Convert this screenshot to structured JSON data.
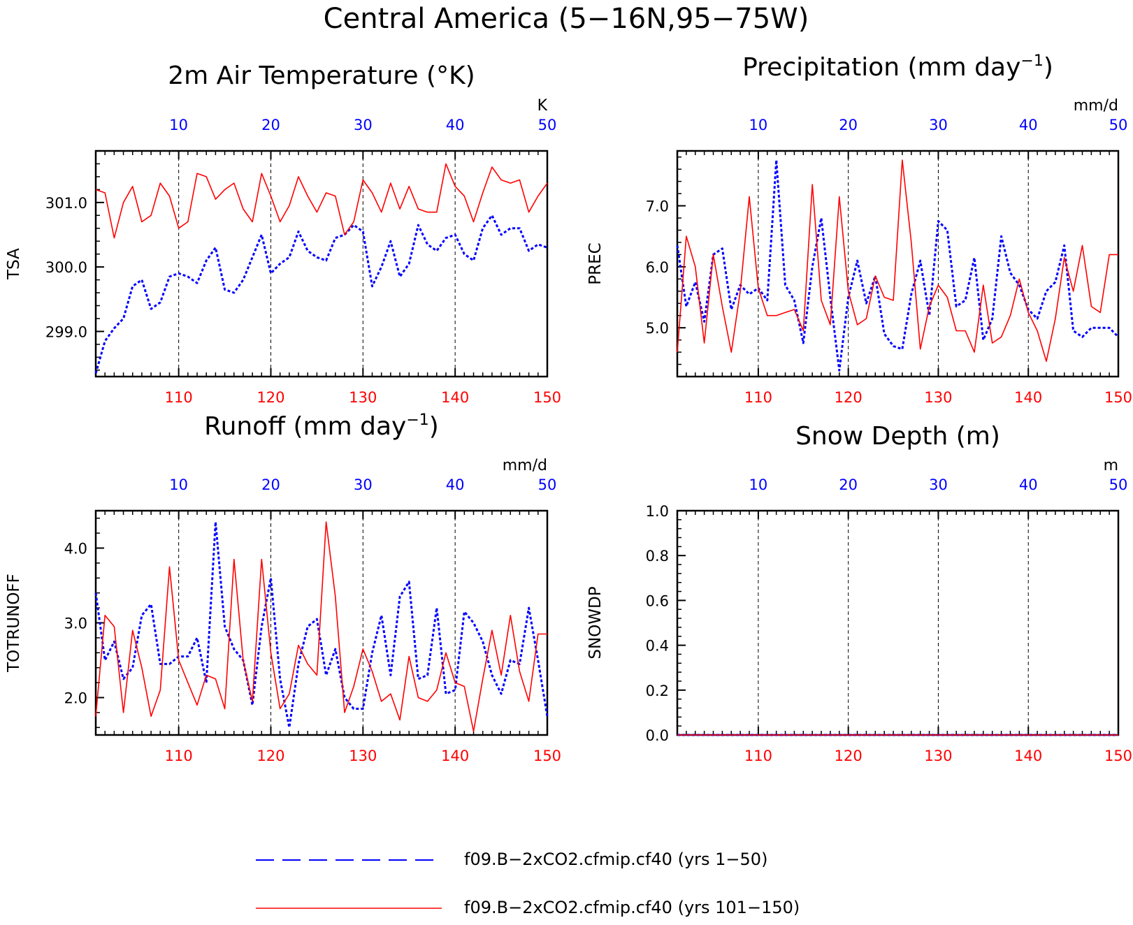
{
  "figure_title": "Central America (5−16N,95−75W)",
  "colors": {
    "blue": "#0000ff",
    "red": "#ff0000",
    "axis": "#000000",
    "grid": "#000000"
  },
  "legend": {
    "entries": [
      {
        "label": "f09.B−2xCO2.cfmip.cf40 (yrs 1−50)",
        "color": "#0000ff",
        "style": "dashed"
      },
      {
        "label": "f09.B−2xCO2.cfmip.cf40 (yrs 101−150)",
        "color": "#ff0000",
        "style": "solid"
      }
    ]
  },
  "chart_data": [
    {
      "type": "line",
      "title_main": "2m Air Temperature (°K)",
      "title_sup": "",
      "title_tail": "",
      "ylabel": "TSA",
      "unit_label": "K",
      "ylim": [
        298.3,
        301.8
      ],
      "yticks": [
        299.0,
        300.0,
        301.0
      ],
      "ytick_labels": [
        "299.0",
        "300.0",
        "301.0"
      ],
      "yminor_step": 0.2,
      "bottom_axis": {
        "lim": [
          101,
          150
        ],
        "ticks": [
          110,
          120,
          130,
          140,
          150
        ],
        "labels": [
          "110",
          "120",
          "130",
          "140",
          "150"
        ]
      },
      "top_axis": {
        "lim": [
          1,
          50
        ],
        "ticks": [
          10,
          20,
          30,
          40,
          50
        ],
        "labels": [
          "10",
          "20",
          "30",
          "40",
          "50"
        ]
      },
      "grid_vertical": [
        110,
        120,
        130,
        140
      ],
      "series": [
        {
          "name": "f09.B−2xCO2.cfmip.cf40 (yrs 1−50)",
          "color": "#0000ff",
          "style": "dashed",
          "values": [
            298.35,
            298.85,
            299.05,
            299.2,
            299.7,
            299.8,
            299.35,
            299.45,
            299.85,
            299.9,
            299.85,
            299.75,
            300.1,
            300.3,
            299.65,
            299.6,
            299.8,
            300.15,
            300.5,
            299.9,
            300.05,
            300.15,
            300.55,
            300.25,
            300.15,
            300.1,
            300.45,
            300.5,
            300.65,
            300.55,
            299.7,
            300.0,
            300.4,
            299.85,
            300.05,
            300.65,
            300.35,
            300.25,
            300.45,
            300.5,
            300.2,
            300.1,
            300.6,
            300.8,
            300.5,
            300.6,
            300.6,
            300.25,
            300.35,
            300.3
          ]
        },
        {
          "name": "f09.B−2xCO2.cfmip.cf40 (yrs 101−150)",
          "color": "#ff0000",
          "style": "solid",
          "values": [
            301.2,
            301.15,
            300.45,
            301.0,
            301.25,
            300.7,
            300.8,
            301.3,
            301.1,
            300.6,
            300.7,
            301.45,
            301.4,
            301.05,
            301.2,
            301.3,
            300.9,
            300.7,
            301.45,
            301.1,
            300.7,
            300.95,
            301.4,
            301.1,
            300.85,
            301.15,
            301.1,
            300.5,
            300.7,
            301.35,
            301.15,
            300.85,
            301.3,
            300.9,
            301.25,
            300.9,
            300.85,
            300.85,
            301.6,
            301.25,
            301.1,
            300.7,
            301.15,
            301.55,
            301.35,
            301.3,
            301.35,
            300.85,
            301.1,
            301.3
          ]
        }
      ]
    },
    {
      "type": "line",
      "title_main": "Precipitation (mm day",
      "title_sup": "−1",
      "title_tail": ")",
      "ylabel": "PREC",
      "unit_label": "mm/d",
      "ylim": [
        4.2,
        7.9
      ],
      "yticks": [
        5.0,
        6.0,
        7.0
      ],
      "ytick_labels": [
        "5.0",
        "6.0",
        "7.0"
      ],
      "yminor_step": 0.2,
      "bottom_axis": {
        "lim": [
          101,
          150
        ],
        "ticks": [
          110,
          120,
          130,
          140,
          150
        ],
        "labels": [
          "110",
          "120",
          "130",
          "140",
          "150"
        ]
      },
      "top_axis": {
        "lim": [
          1,
          50
        ],
        "ticks": [
          10,
          20,
          30,
          40,
          50
        ],
        "labels": [
          "10",
          "20",
          "30",
          "40",
          "50"
        ]
      },
      "grid_vertical": [
        110,
        120,
        130,
        140
      ],
      "series": [
        {
          "name": "f09.B−2xCO2.cfmip.cf40 (yrs 1−50)",
          "color": "#0000ff",
          "style": "dashed",
          "values": [
            6.35,
            5.35,
            5.75,
            5.1,
            6.2,
            6.3,
            5.3,
            5.7,
            5.55,
            5.65,
            5.45,
            7.75,
            5.7,
            5.45,
            4.75,
            6.0,
            6.8,
            5.5,
            4.3,
            5.5,
            6.1,
            5.4,
            5.85,
            4.9,
            4.7,
            4.65,
            5.55,
            6.1,
            5.2,
            6.75,
            6.6,
            5.35,
            5.45,
            6.15,
            4.8,
            5.15,
            6.5,
            5.9,
            5.7,
            5.3,
            5.15,
            5.6,
            5.75,
            6.35,
            4.95,
            4.85,
            5.0,
            5.0,
            5.0,
            4.85
          ]
        },
        {
          "name": "f09.B−2xCO2.cfmip.cf40 (yrs 101−150)",
          "color": "#ff0000",
          "style": "solid",
          "values": [
            4.6,
            6.5,
            6.0,
            4.75,
            6.2,
            5.35,
            4.6,
            5.6,
            7.15,
            5.65,
            5.2,
            5.2,
            5.25,
            5.3,
            4.95,
            7.35,
            5.45,
            5.05,
            7.15,
            5.6,
            5.05,
            5.15,
            5.85,
            5.5,
            5.45,
            7.75,
            6.4,
            4.65,
            5.35,
            5.7,
            5.5,
            4.95,
            4.95,
            4.6,
            5.7,
            4.75,
            4.85,
            5.2,
            5.8,
            5.25,
            4.95,
            4.45,
            5.15,
            6.15,
            5.6,
            6.35,
            5.35,
            5.25,
            6.2,
            6.2
          ]
        }
      ]
    },
    {
      "type": "line",
      "title_main": "Runoff (mm day",
      "title_sup": "−1",
      "title_tail": ")",
      "ylabel": "TOTRUNOFF",
      "unit_label": "mm/d",
      "ylim": [
        1.5,
        4.5
      ],
      "yticks": [
        2.0,
        3.0,
        4.0
      ],
      "ytick_labels": [
        "2.0",
        "3.0",
        "4.0"
      ],
      "yminor_step": 0.2,
      "bottom_axis": {
        "lim": [
          101,
          150
        ],
        "ticks": [
          110,
          120,
          130,
          140,
          150
        ],
        "labels": [
          "110",
          "120",
          "130",
          "140",
          "150"
        ]
      },
      "top_axis": {
        "lim": [
          1,
          50
        ],
        "ticks": [
          10,
          20,
          30,
          40,
          50
        ],
        "labels": [
          "10",
          "20",
          "30",
          "40",
          "50"
        ]
      },
      "grid_vertical": [
        110,
        120,
        130,
        140
      ],
      "series": [
        {
          "name": "f09.B−2xCO2.cfmip.cf40 (yrs 1−50)",
          "color": "#0000ff",
          "style": "dashed",
          "values": [
            3.4,
            2.5,
            2.75,
            2.25,
            2.4,
            3.1,
            3.25,
            2.45,
            2.45,
            2.55,
            2.55,
            2.8,
            2.2,
            4.35,
            2.95,
            2.65,
            2.5,
            1.9,
            2.95,
            3.6,
            2.25,
            1.6,
            2.45,
            2.95,
            3.05,
            2.3,
            2.65,
            2.0,
            1.85,
            1.85,
            2.6,
            3.1,
            2.3,
            3.35,
            3.55,
            2.25,
            2.3,
            3.2,
            2.05,
            2.1,
            3.15,
            3.0,
            2.75,
            2.3,
            2.05,
            2.5,
            2.45,
            3.2,
            2.5,
            1.75
          ]
        },
        {
          "name": "f09.B−2xCO2.cfmip.cf40 (yrs 101−150)",
          "color": "#ff0000",
          "style": "solid",
          "values": [
            1.75,
            3.1,
            2.95,
            1.8,
            2.9,
            2.4,
            1.75,
            2.1,
            3.75,
            2.5,
            2.2,
            1.9,
            2.3,
            2.25,
            1.85,
            3.85,
            2.5,
            1.95,
            3.85,
            2.6,
            1.85,
            2.05,
            2.7,
            2.45,
            2.3,
            4.35,
            3.35,
            1.8,
            2.15,
            2.65,
            2.35,
            1.95,
            2.05,
            1.7,
            2.55,
            2.0,
            1.95,
            2.1,
            2.6,
            2.2,
            2.15,
            1.55,
            2.25,
            2.9,
            2.3,
            3.1,
            2.35,
            1.95,
            2.85,
            2.85
          ]
        }
      ]
    },
    {
      "type": "line",
      "title_main": "Snow Depth (m)",
      "title_sup": "",
      "title_tail": "",
      "ylabel": "SNOWDP",
      "unit_label": "m",
      "ylim": [
        0.0,
        1.0
      ],
      "yticks": [
        0.0,
        0.2,
        0.4,
        0.6,
        0.8,
        1.0
      ],
      "ytick_labels": [
        "0.0",
        "0.2",
        "0.4",
        "0.6",
        "0.8",
        "1.0"
      ],
      "yminor_step": 0.04,
      "bottom_axis": {
        "lim": [
          101,
          150
        ],
        "ticks": [
          110,
          120,
          130,
          140,
          150
        ],
        "labels": [
          "110",
          "120",
          "130",
          "140",
          "150"
        ]
      },
      "top_axis": {
        "lim": [
          1,
          50
        ],
        "ticks": [
          10,
          20,
          30,
          40,
          50
        ],
        "labels": [
          "10",
          "20",
          "30",
          "40",
          "50"
        ]
      },
      "grid_vertical": [
        110,
        120,
        130,
        140
      ],
      "series": [
        {
          "name": "f09.B−2xCO2.cfmip.cf40 (yrs 1−50)",
          "color": "#0000ff",
          "style": "dashed",
          "values": [
            0,
            0,
            0,
            0,
            0,
            0,
            0,
            0,
            0,
            0,
            0,
            0,
            0,
            0,
            0,
            0,
            0,
            0,
            0,
            0,
            0,
            0,
            0,
            0,
            0,
            0,
            0,
            0,
            0,
            0,
            0,
            0,
            0,
            0,
            0,
            0,
            0,
            0,
            0,
            0,
            0,
            0,
            0,
            0,
            0,
            0,
            0,
            0,
            0,
            0
          ]
        },
        {
          "name": "f09.B−2xCO2.cfmip.cf40 (yrs 101−150)",
          "color": "#ff0000",
          "style": "solid",
          "values": [
            0,
            0,
            0,
            0,
            0,
            0,
            0,
            0,
            0,
            0,
            0,
            0,
            0,
            0,
            0,
            0,
            0,
            0,
            0,
            0,
            0,
            0,
            0,
            0,
            0,
            0,
            0,
            0,
            0,
            0,
            0,
            0,
            0,
            0,
            0,
            0,
            0,
            0,
            0,
            0,
            0,
            0,
            0,
            0,
            0,
            0,
            0,
            0,
            0,
            0
          ]
        }
      ]
    }
  ]
}
